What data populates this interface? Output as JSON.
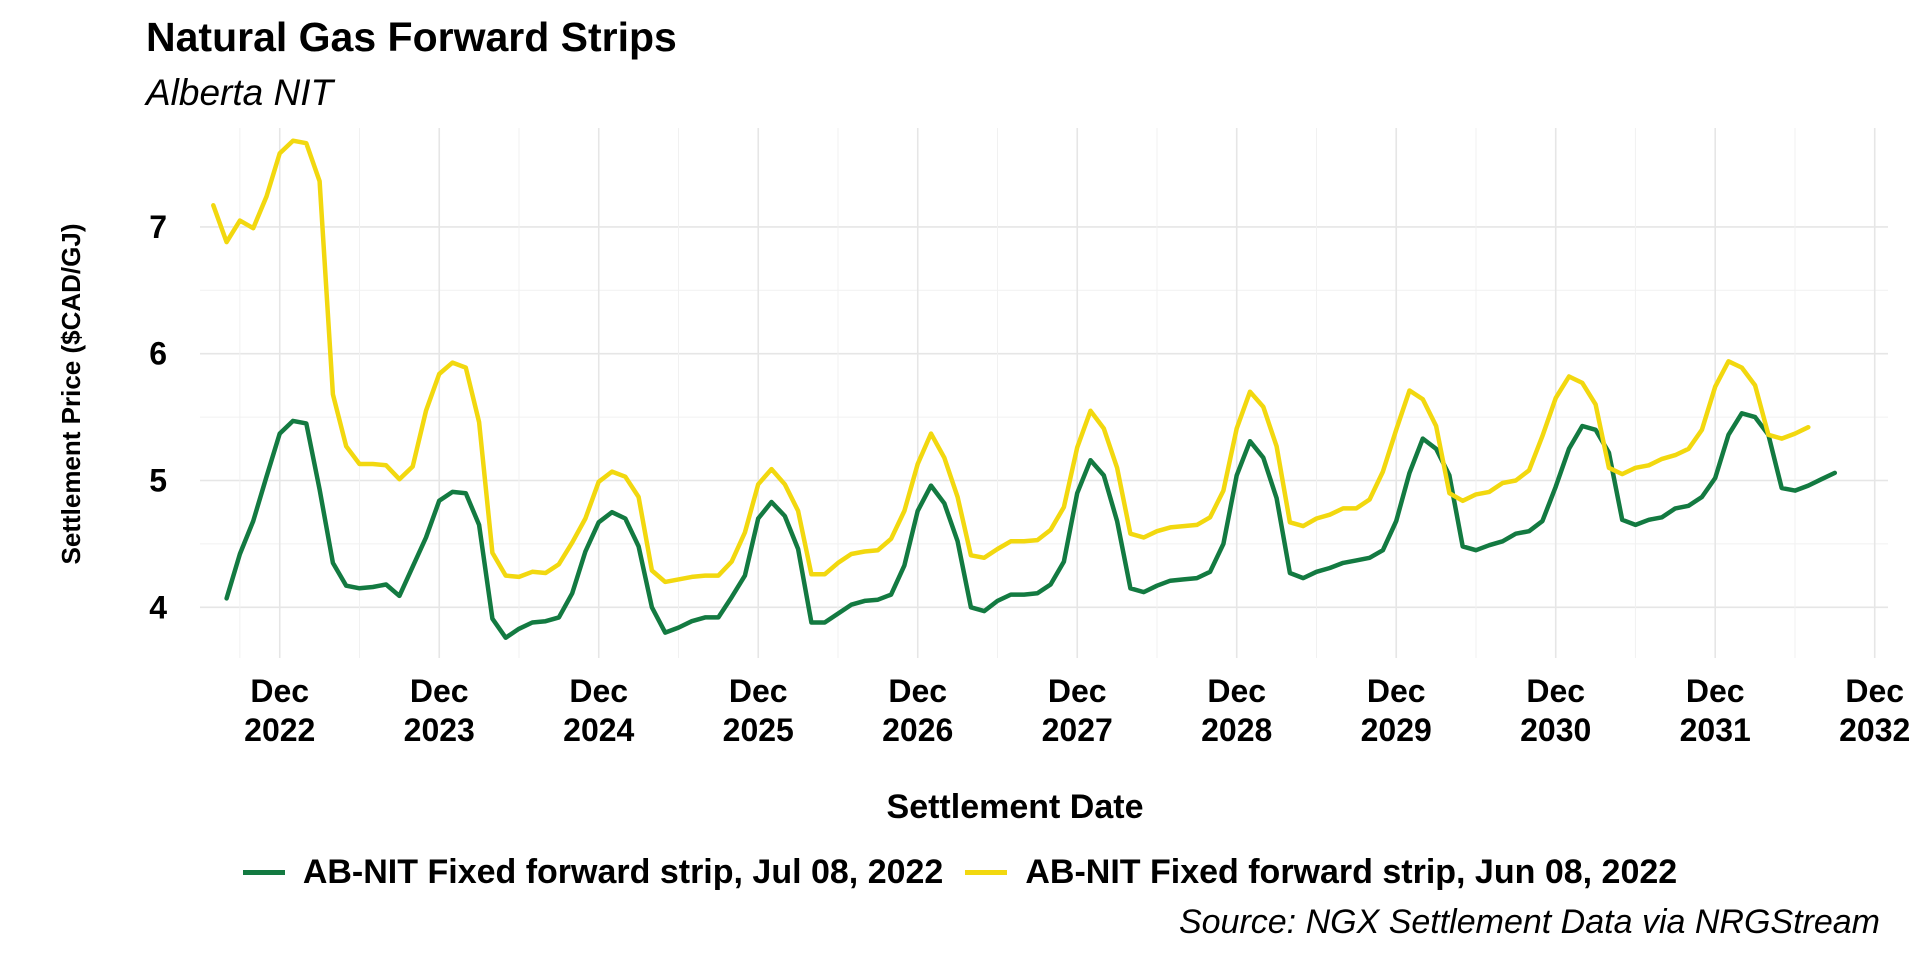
{
  "chart_data": {
    "type": "line",
    "title": "Natural Gas Forward Strips",
    "subtitle": "Alberta NIT",
    "xlabel": "Settlement Date",
    "ylabel": "Settlement Price ($CAD/GJ)",
    "caption": "Source: NGX Settlement Data via NRGStream",
    "xlim": [
      "2022-06-01",
      "2033-01-01"
    ],
    "ylim": [
      3.6,
      7.78
    ],
    "yticks": [
      4,
      5,
      6,
      7
    ],
    "ytick_labels": [
      "4",
      "5",
      "6",
      "7"
    ],
    "xticks": [
      "2022-12-01",
      "2023-12-01",
      "2024-12-01",
      "2025-12-01",
      "2026-12-01",
      "2027-12-01",
      "2028-12-01",
      "2029-12-01",
      "2030-12-01",
      "2031-12-01",
      "2032-12-01"
    ],
    "xtick_labels": [
      [
        "Dec",
        "2022"
      ],
      [
        "Dec",
        "2023"
      ],
      [
        "Dec",
        "2024"
      ],
      [
        "Dec",
        "2025"
      ],
      [
        "Dec",
        "2026"
      ],
      [
        "Dec",
        "2027"
      ],
      [
        "Dec",
        "2028"
      ],
      [
        "Dec",
        "2029"
      ],
      [
        "Dec",
        "2030"
      ],
      [
        "Dec",
        "2031"
      ],
      [
        "Dec",
        "2032"
      ]
    ],
    "grid": true,
    "legend_position": "bottom",
    "series": [
      {
        "name": "AB-NIT Fixed forward strip, Jul 08, 2022",
        "color": "#137A41",
        "start": "2022-08-01",
        "values": [
          4.07,
          4.42,
          4.68,
          5.03,
          5.37,
          5.47,
          5.45,
          4.93,
          4.35,
          4.17,
          4.15,
          4.16,
          4.18,
          4.09,
          4.32,
          4.55,
          4.84,
          4.91,
          4.9,
          4.65,
          3.91,
          3.76,
          3.83,
          3.88,
          3.89,
          3.92,
          4.11,
          4.44,
          4.67,
          4.75,
          4.7,
          4.48,
          4.0,
          3.8,
          3.84,
          3.89,
          3.92,
          3.92,
          4.08,
          4.25,
          4.7,
          4.83,
          4.72,
          4.46,
          3.88,
          3.88,
          3.95,
          4.02,
          4.05,
          4.06,
          4.1,
          4.33,
          4.76,
          4.96,
          4.82,
          4.52,
          4.0,
          3.97,
          4.05,
          4.1,
          4.1,
          4.11,
          4.18,
          4.36,
          4.9,
          5.16,
          5.04,
          4.68,
          4.15,
          4.12,
          4.17,
          4.21,
          4.22,
          4.23,
          4.28,
          4.5,
          5.04,
          5.31,
          5.18,
          4.86,
          4.27,
          4.23,
          4.28,
          4.31,
          4.35,
          4.37,
          4.39,
          4.45,
          4.68,
          5.06,
          5.33,
          5.25,
          5.04,
          4.48,
          4.45,
          4.49,
          4.52,
          4.58,
          4.6,
          4.68,
          4.95,
          5.25,
          5.43,
          5.4,
          5.22,
          4.69,
          4.65,
          4.69,
          4.71,
          4.78,
          4.8,
          4.87,
          5.02,
          5.36,
          5.53,
          5.5,
          5.36,
          4.94,
          4.92,
          4.96,
          5.01,
          5.06
        ]
      },
      {
        "name": "AB-NIT Fixed forward strip, Jun 08, 2022",
        "color": "#F2D80F",
        "start": "2022-07-01",
        "values": [
          7.17,
          6.88,
          7.05,
          6.99,
          7.24,
          7.58,
          7.68,
          7.66,
          7.36,
          5.68,
          5.27,
          5.13,
          5.13,
          5.12,
          5.01,
          5.11,
          5.55,
          5.84,
          5.93,
          5.89,
          5.46,
          4.43,
          4.25,
          4.24,
          4.28,
          4.27,
          4.34,
          4.51,
          4.7,
          4.99,
          5.07,
          5.03,
          4.87,
          4.29,
          4.2,
          4.22,
          4.24,
          4.25,
          4.25,
          4.36,
          4.59,
          4.97,
          5.09,
          4.97,
          4.76,
          4.26,
          4.26,
          4.35,
          4.42,
          4.44,
          4.45,
          4.54,
          4.76,
          5.13,
          5.37,
          5.18,
          4.87,
          4.41,
          4.39,
          4.46,
          4.52,
          4.52,
          4.53,
          4.61,
          4.79,
          5.26,
          5.55,
          5.41,
          5.1,
          4.58,
          4.55,
          4.6,
          4.63,
          4.64,
          4.65,
          4.71,
          4.92,
          5.41,
          5.7,
          5.58,
          5.27,
          4.67,
          4.64,
          4.7,
          4.73,
          4.78,
          4.78,
          4.85,
          5.07,
          5.4,
          5.71,
          5.64,
          5.43,
          4.9,
          4.84,
          4.89,
          4.91,
          4.98,
          5.0,
          5.08,
          5.35,
          5.65,
          5.82,
          5.77,
          5.6,
          5.1,
          5.05,
          5.1,
          5.12,
          5.17,
          5.2,
          5.25,
          5.4,
          5.74,
          5.94,
          5.89,
          5.75,
          5.36,
          5.33,
          5.37,
          5.42
        ]
      }
    ]
  }
}
